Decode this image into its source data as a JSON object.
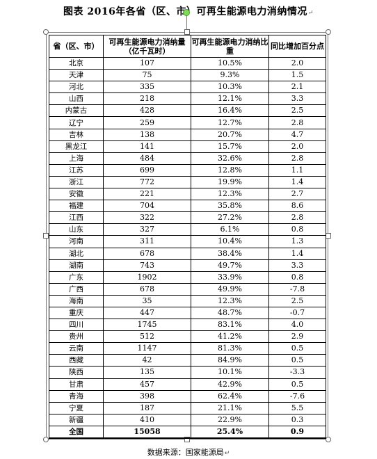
{
  "title": "图表  2016年各省（区、市）可再生能源电力消纳情况",
  "return_mark": "↵",
  "table": {
    "headers": [
      "省（区、市）",
      "可再生能源电力消纳量（亿千瓦时）",
      "可再生能源电力消纳比重",
      "同比增加百分点"
    ],
    "rows": [
      [
        "北京",
        "107",
        "10.5%",
        "2.0"
      ],
      [
        "天津",
        "75",
        "9.3%",
        "1.5"
      ],
      [
        "河北",
        "335",
        "10.3%",
        "2.1"
      ],
      [
        "山西",
        "218",
        "12.1%",
        "3.3"
      ],
      [
        "内蒙古",
        "428",
        "16.4%",
        "2.5"
      ],
      [
        "辽宁",
        "259",
        "12.7%",
        "2.8"
      ],
      [
        "吉林",
        "138",
        "20.7%",
        "4.7"
      ],
      [
        "黑龙江",
        "141",
        "15.7%",
        "2.0"
      ],
      [
        "上海",
        "484",
        "32.6%",
        "2.8"
      ],
      [
        "江苏",
        "699",
        "12.8%",
        "1.1"
      ],
      [
        "浙江",
        "772",
        "19.9%",
        "1.4"
      ],
      [
        "安徽",
        "221",
        "12.3%",
        "2.7"
      ],
      [
        "福建",
        "704",
        "35.8%",
        "8.6"
      ],
      [
        "江西",
        "322",
        "27.2%",
        "2.8"
      ],
      [
        "山东",
        "327",
        "6.1%",
        "0.8"
      ],
      [
        "河南",
        "311",
        "10.4%",
        "1.3"
      ],
      [
        "湖北",
        "678",
        "38.4%",
        "1.4"
      ],
      [
        "湖南",
        "743",
        "49.7%",
        "3.3"
      ],
      [
        "广东",
        "1902",
        "33.9%",
        "0.8"
      ],
      [
        "广西",
        "678",
        "49.9%",
        "-7.8"
      ],
      [
        "海南",
        "35",
        "12.3%",
        "2.5"
      ],
      [
        "重庆",
        "447",
        "48.7%",
        "-0.7"
      ],
      [
        "四川",
        "1745",
        "83.1%",
        "4.0"
      ],
      [
        "贵州",
        "512",
        "41.2%",
        "2.9"
      ],
      [
        "云南",
        "1147",
        "81.3%",
        "0.5"
      ],
      [
        "西藏",
        "42",
        "84.9%",
        "0.5"
      ],
      [
        "陕西",
        "135",
        "10.1%",
        "-3.3"
      ],
      [
        "甘肃",
        "457",
        "42.9%",
        "0.5"
      ],
      [
        "青海",
        "398",
        "62.4%",
        "-7.6"
      ],
      [
        "宁夏",
        "187",
        "21.1%",
        "5.5"
      ],
      [
        "新疆",
        "410",
        "22.9%",
        "0.3"
      ]
    ],
    "total": [
      "全国",
      "15058",
      "25.4%",
      "0.9"
    ]
  },
  "source": "数据来源：国家能源局"
}
